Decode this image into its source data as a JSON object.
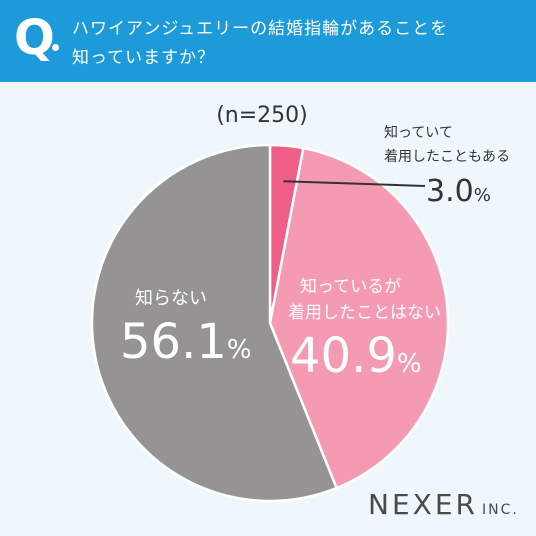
{
  "header": {
    "q_label": "Q",
    "question_line1": "ハワイアンジュエリーの結婚指輪があることを",
    "question_line2": "知っていますか？"
  },
  "chart_data": {
    "type": "pie",
    "sample_size_label": "(n=250)",
    "start": "12 o'clock",
    "direction": "clockwise",
    "slices": [
      {
        "label_lines": [
          "知っていて",
          "着用したこともある"
        ],
        "value": 3.0,
        "value_text": "3.0",
        "color": "#ee5e87"
      },
      {
        "label_lines": [
          "知っているが",
          "着用したことはない"
        ],
        "value": 40.9,
        "value_text": "40.9",
        "color": "#f49ab3"
      },
      {
        "label_lines": [
          "知らない"
        ],
        "value": 56.1,
        "value_text": "56.1",
        "color": "#959393"
      }
    ],
    "unit": "%"
  },
  "branding": {
    "logo_main": "NEXER",
    "logo_inc": "INC."
  }
}
